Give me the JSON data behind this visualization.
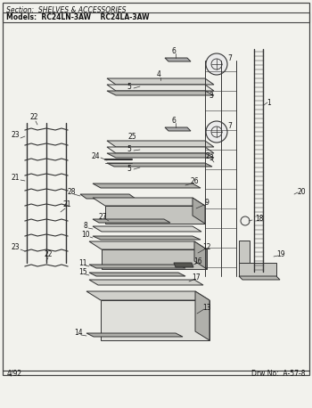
{
  "section_text": "Section:  SHELVES & ACCESSORIES",
  "models_text": "Models:  RC24LN-3AW    RC24LA-3AW",
  "footer_left": "4/92",
  "footer_right": "Drw No:  A-57-8",
  "bg_color": "#f2f2ed",
  "border_color": "#444444",
  "line_color": "#333333",
  "text_color": "#111111",
  "fig_width": 3.5,
  "fig_height": 4.58,
  "dpi": 100
}
